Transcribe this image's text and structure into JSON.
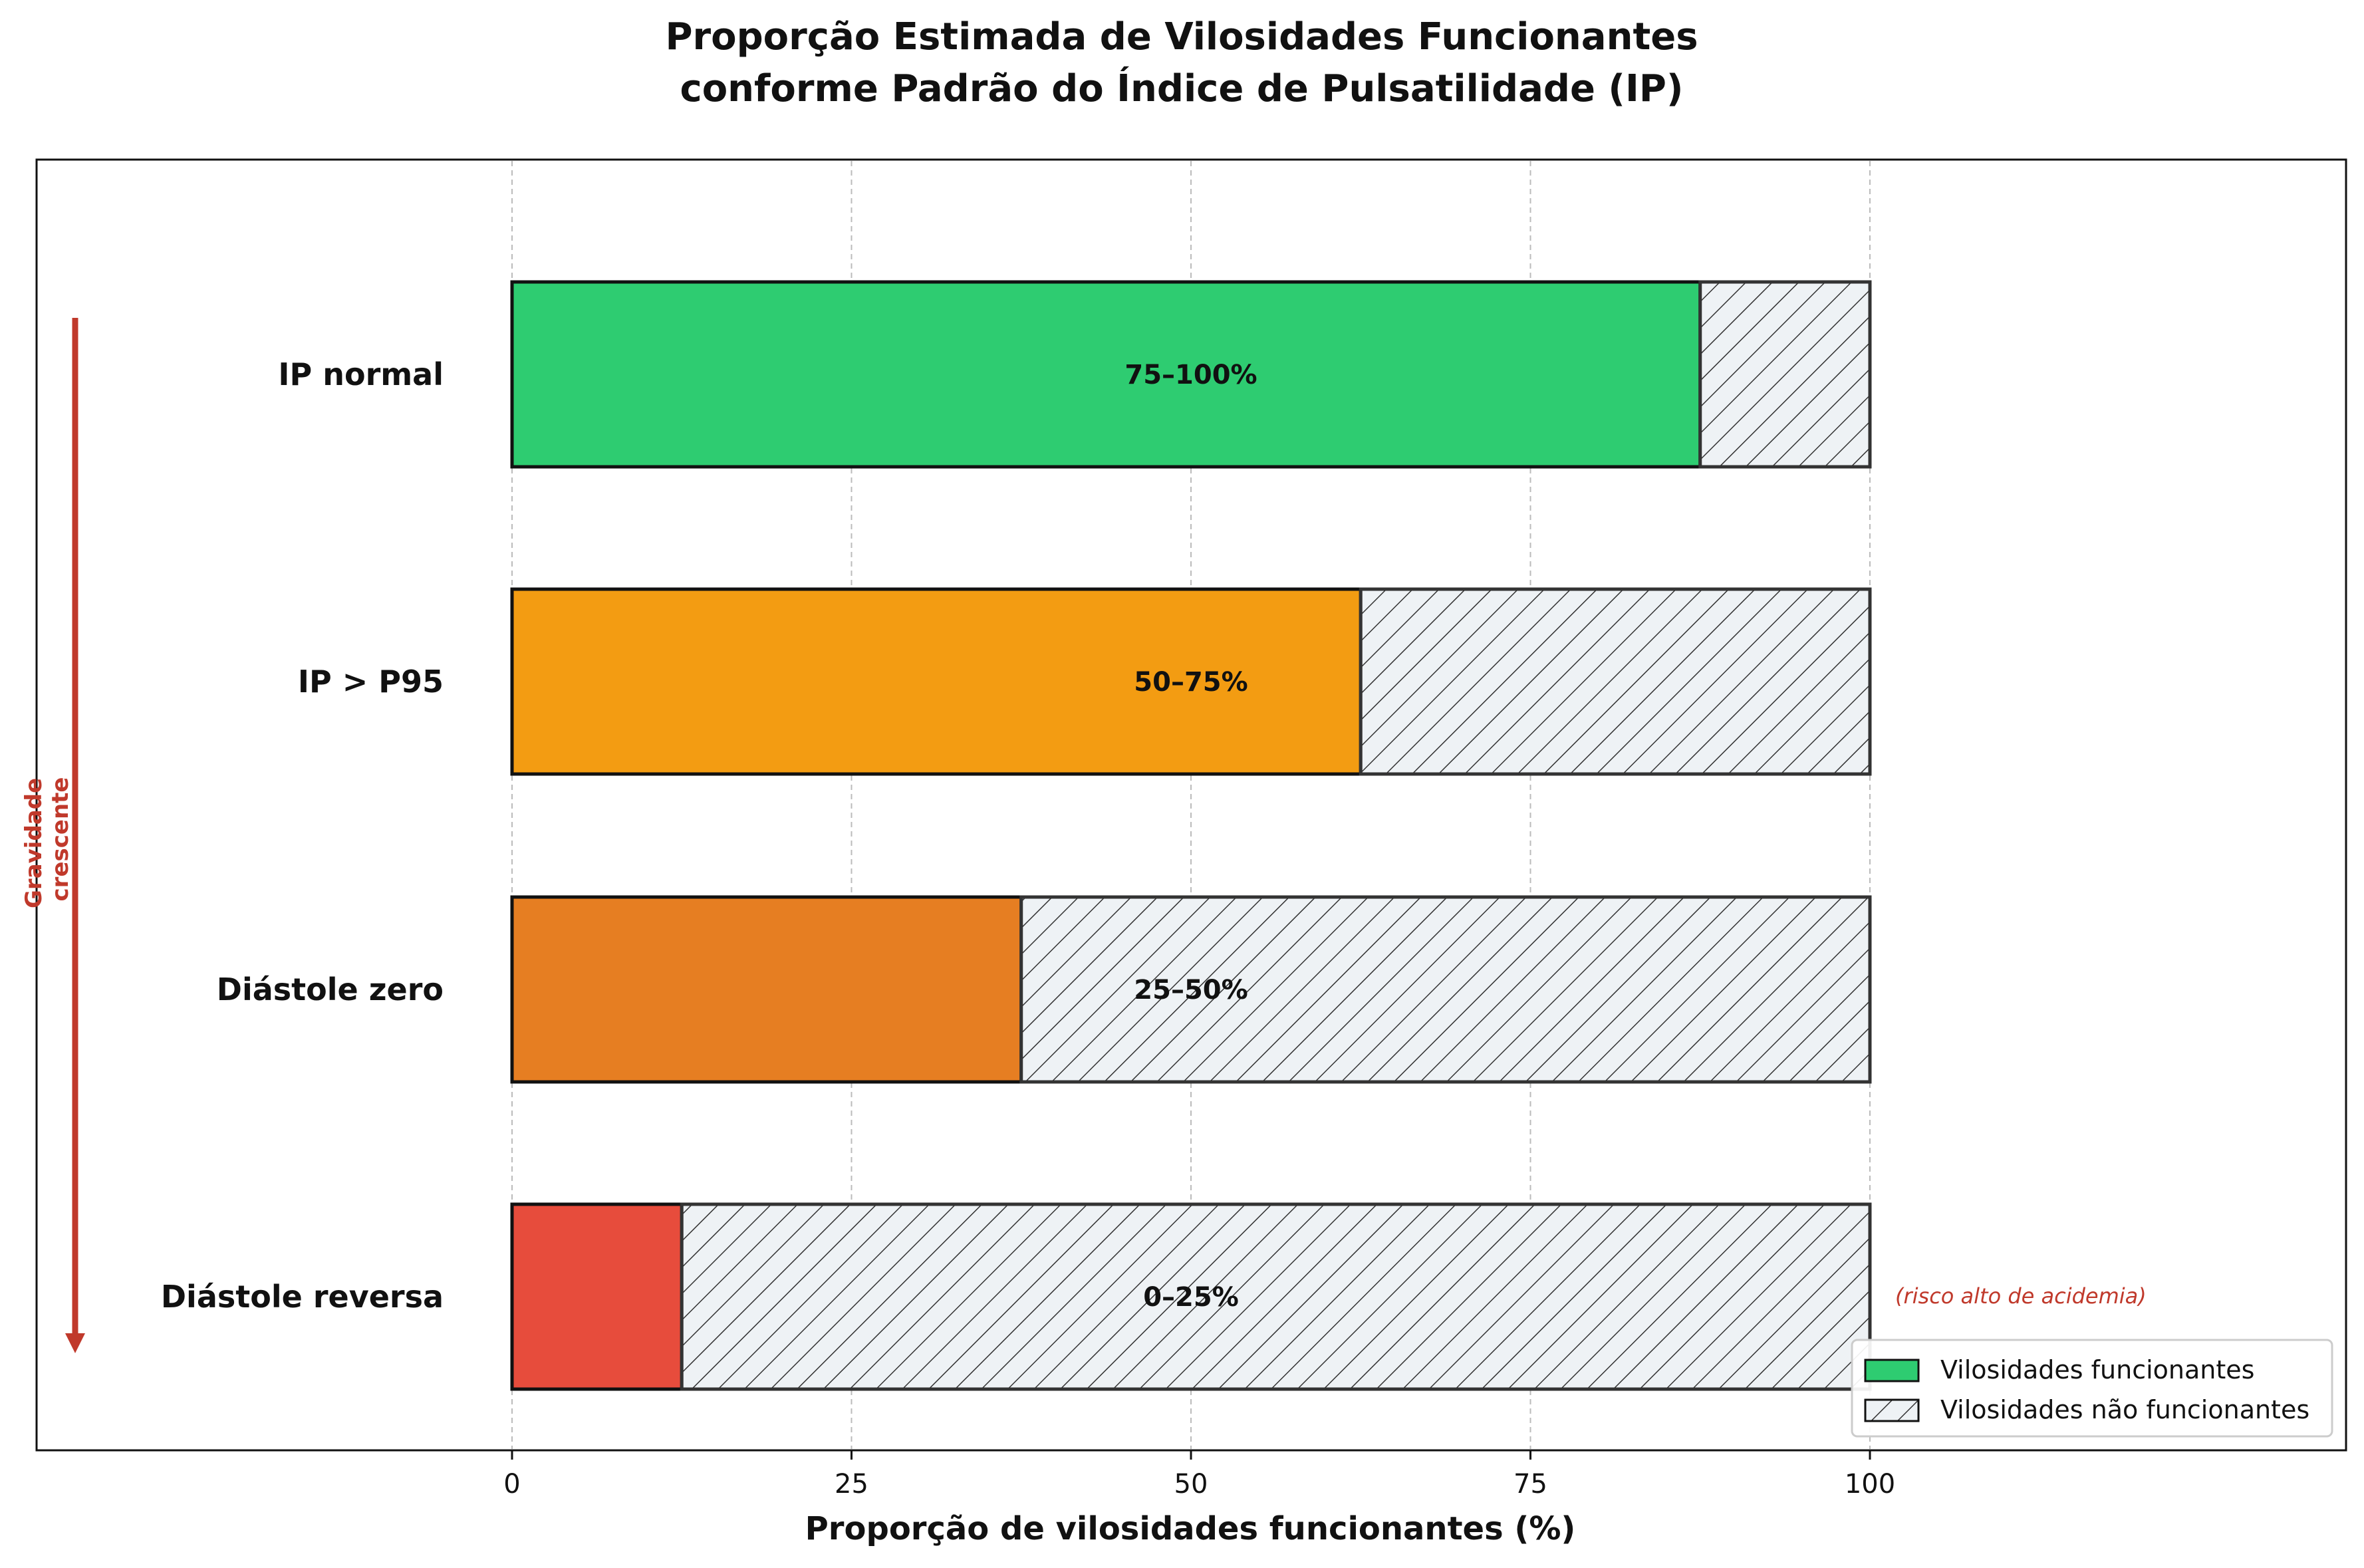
{
  "chart_data": {
    "type": "bar",
    "orientation": "horizontal",
    "stacked": true,
    "title_lines": [
      "Proporção Estimada de Vilosidades Funcionantes",
      "conforme Padrão do Índice de Pulsatilidade (IP)"
    ],
    "xlabel": "Proporção de vilosidades funcionantes (%)",
    "xlim": [
      0,
      100
    ],
    "x_ticks": [
      0,
      25,
      50,
      75,
      100
    ],
    "grid": "x-dashed",
    "categories": [
      "IP normal",
      "IP > P95",
      "Diástole zero",
      "Diástole reversa"
    ],
    "series": [
      {
        "name": "Vilosidades funcionantes",
        "values": [
          87.5,
          62.5,
          37.5,
          12.5
        ]
      },
      {
        "name": "Vilosidades não funcionantes",
        "values": [
          12.5,
          37.5,
          62.5,
          87.5
        ]
      }
    ],
    "bar_labels": [
      "75–100%",
      "50–75%",
      "25–50%",
      "0–25%"
    ],
    "bar_colors": [
      "#2ecc71",
      "#f39c12",
      "#e67e22",
      "#e74c3c"
    ],
    "hatch_fill": "#eef2f5",
    "annotations": {
      "severity_label": [
        "Gravidade",
        "crescente"
      ],
      "severity_color": "#c0392b",
      "high_risk_note": "(risco alto de acidemia)",
      "high_risk_category": "Diástole reversa"
    },
    "legend_position": "lower-right"
  }
}
